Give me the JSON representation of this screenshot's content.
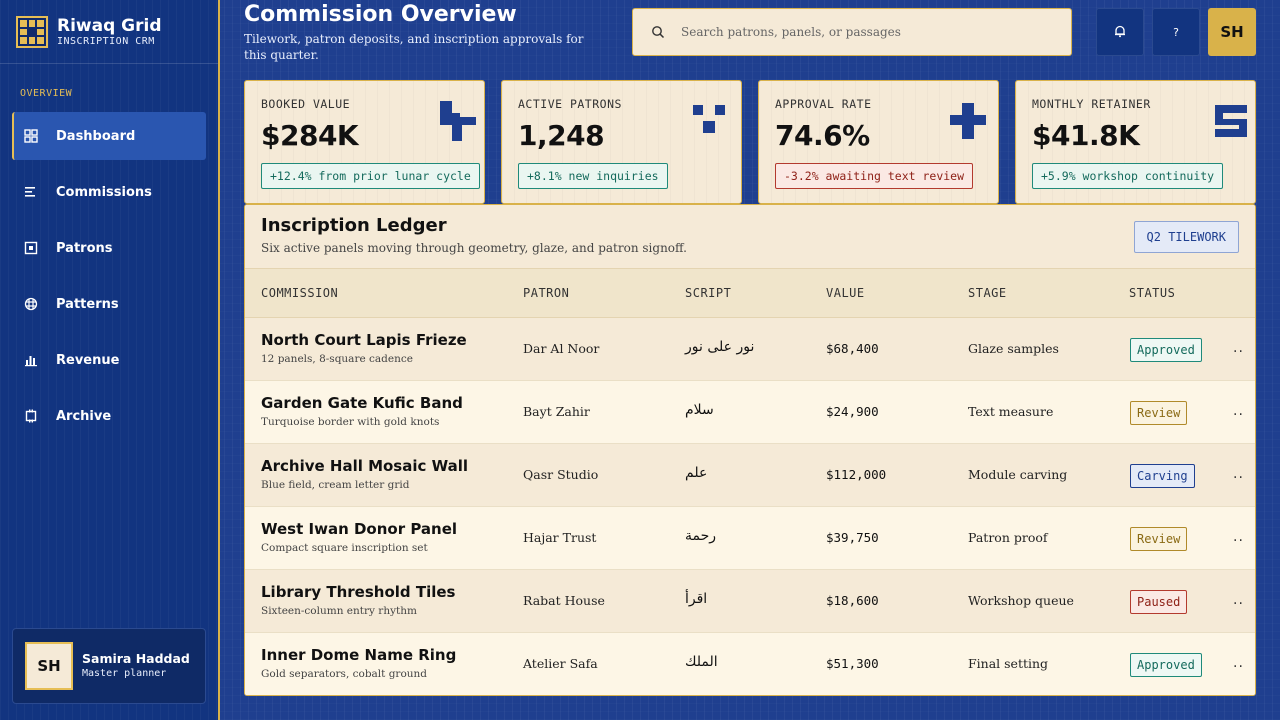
{
  "brand": {
    "title": "Riwaq Grid",
    "subtitle": "INSCRIPTION CRM"
  },
  "sidebar": {
    "section": "OVERVIEW",
    "items": [
      {
        "label": "Dashboard",
        "icon": "dashboard-icon"
      },
      {
        "label": "Commissions",
        "icon": "list-icon"
      },
      {
        "label": "Patrons",
        "icon": "patron-icon"
      },
      {
        "label": "Patterns",
        "icon": "pattern-icon"
      },
      {
        "label": "Revenue",
        "icon": "revenue-icon"
      },
      {
        "label": "Archive",
        "icon": "archive-icon"
      }
    ],
    "active": "Dashboard"
  },
  "user": {
    "initials": "SH",
    "name": "Samira Haddad",
    "role": "Master planner"
  },
  "header": {
    "title": "Commission Overview",
    "subtitle": "Tilework, patron deposits, and inscription approvals for this quarter.",
    "search_placeholder": "Search patrons, panels, or passages",
    "help_label": "?",
    "avatar_initials": "SH"
  },
  "kpis": [
    {
      "label": "BOOKED VALUE",
      "value": "$284K",
      "delta": "+12.4% from prior lunar cycle",
      "trend": "up"
    },
    {
      "label": "ACTIVE PATRONS",
      "value": "1,248",
      "delta": "+8.1% new inquiries",
      "trend": "up"
    },
    {
      "label": "APPROVAL RATE",
      "value": "74.6%",
      "delta": "-3.2% awaiting text review",
      "trend": "down"
    },
    {
      "label": "MONTHLY RETAINER",
      "value": "$41.8K",
      "delta": "+5.9% workshop continuity",
      "trend": "up"
    }
  ],
  "ledger": {
    "title": "Inscription Ledger",
    "subtitle": "Six active panels moving through geometry, glaze, and patron signoff.",
    "tag": "Q2 TILEWORK",
    "columns": [
      "COMMISSION",
      "PATRON",
      "SCRIPT",
      "VALUE",
      "STAGE",
      "STATUS"
    ],
    "rows": [
      {
        "name": "North Court Lapis Frieze",
        "note": "12 panels, 8-square cadence",
        "patron": "Dar Al Noor",
        "script": "نور على نور",
        "value": "$68,400",
        "stage": "Glaze samples",
        "status": "Approved",
        "status_kind": "approved"
      },
      {
        "name": "Garden Gate Kufic Band",
        "note": "Turquoise border with gold knots",
        "patron": "Bayt Zahir",
        "script": "سلام",
        "value": "$24,900",
        "stage": "Text measure",
        "status": "Review",
        "status_kind": "review"
      },
      {
        "name": "Archive Hall Mosaic Wall",
        "note": "Blue field, cream letter grid",
        "patron": "Qasr Studio",
        "script": "علم",
        "value": "$112,000",
        "stage": "Module carving",
        "status": "Carving",
        "status_kind": "carving"
      },
      {
        "name": "West Iwan Donor Panel",
        "note": "Compact square inscription set",
        "patron": "Hajar Trust",
        "script": "رحمة",
        "value": "$39,750",
        "stage": "Patron proof",
        "status": "Review",
        "status_kind": "review"
      },
      {
        "name": "Library Threshold Tiles",
        "note": "Sixteen-column entry rhythm",
        "patron": "Rabat House",
        "script": "اقرأ",
        "value": "$18,600",
        "stage": "Workshop queue",
        "status": "Paused",
        "status_kind": "paused"
      },
      {
        "name": "Inner Dome Name Ring",
        "note": "Gold separators, cobalt ground",
        "patron": "Atelier Safa",
        "script": "الملك",
        "value": "$51,300",
        "stage": "Final setting",
        "status": "Approved",
        "status_kind": "approved"
      }
    ],
    "row_action": ".."
  },
  "colors": {
    "accent": "#d9b24a",
    "primary": "#1f3f8f",
    "card": "#f5ead7"
  }
}
